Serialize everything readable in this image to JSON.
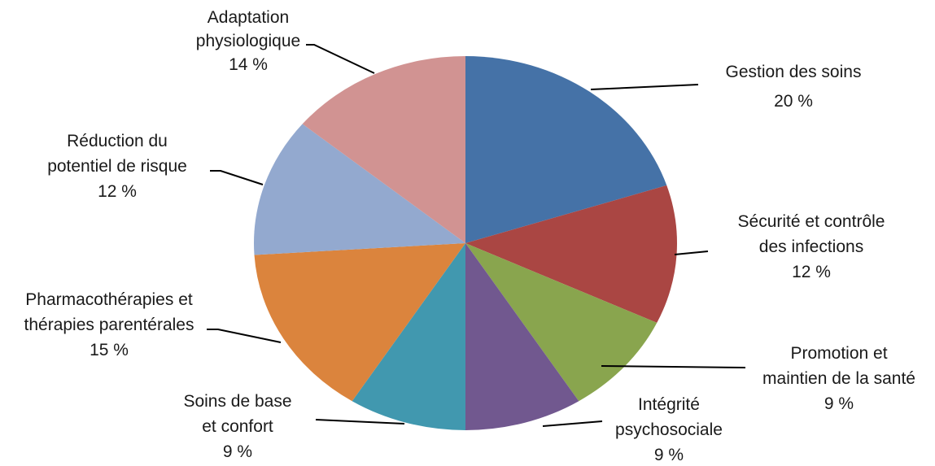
{
  "chart_data": {
    "type": "pie",
    "title": "",
    "legend": "none",
    "start_angle_deg": 0,
    "direction": "clockwise",
    "slices": [
      {
        "name": "Gestion des soins",
        "label_lines": [
          "Gestion des soins"
        ],
        "value": 20,
        "value_label": "20 %",
        "color": "#4572A7"
      },
      {
        "name": "Sécurité et contrôle des infections",
        "label_lines": [
          "Sécurité et contrôle",
          "des infections"
        ],
        "value": 12,
        "value_label": "12 %",
        "color": "#AA4643"
      },
      {
        "name": "Promotion et maintien de la santé",
        "label_lines": [
          "Promotion et",
          "maintien de la santé"
        ],
        "value": 9,
        "value_label": "9 %",
        "color": "#89A54E"
      },
      {
        "name": "Intégrité psychosociale",
        "label_lines": [
          "Intégrité",
          "psychosociale"
        ],
        "value": 9,
        "value_label": "9 %",
        "color": "#71588F"
      },
      {
        "name": "Soins de base et confort",
        "label_lines": [
          "Soins de base",
          "et confort"
        ],
        "value": 9,
        "value_label": "9 %",
        "color": "#4198AF"
      },
      {
        "name": "Pharmacothérapies et thérapies parentérales",
        "label_lines": [
          "Pharmacothérapies et",
          "thérapies parentérales"
        ],
        "value": 15,
        "value_label": "15 %",
        "color": "#DB843D"
      },
      {
        "name": "Réduction du potentiel de risque",
        "label_lines": [
          "Réduction du",
          "potentiel de risque"
        ],
        "value": 12,
        "value_label": "12 %",
        "color": "#93A9CF"
      },
      {
        "name": "Adaptation physiologique",
        "label_lines": [
          "Adaptation",
          "physiologique"
        ],
        "value": 14,
        "value_label": "14 %",
        "color": "#D19392"
      }
    ]
  }
}
